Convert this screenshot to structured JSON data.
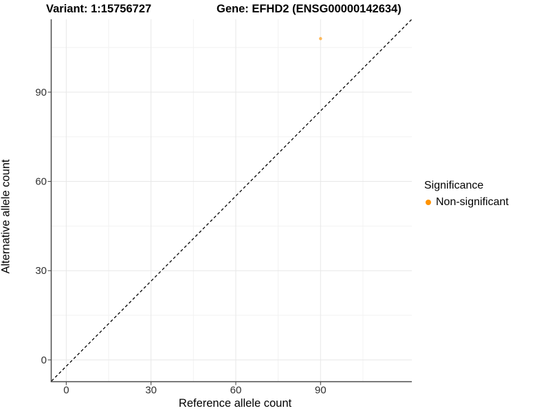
{
  "chart_data": {
    "type": "scatter",
    "titles": {
      "variant": "Variant: 1:15756727",
      "gene": "Gene: EFHD2 (ENSG00000142634)"
    },
    "xlabel": "Reference allele count",
    "ylabel": "Alternative allele count",
    "xticks": [
      0,
      30,
      60,
      90
    ],
    "yticks": [
      0,
      30,
      60,
      90
    ],
    "xminor": [
      15,
      45,
      75,
      105
    ],
    "yminor": [
      15,
      45,
      75,
      105
    ],
    "xlim": [
      -5.2,
      122.3
    ],
    "ylim": [
      -7.2,
      114.5
    ],
    "grid": true,
    "points": [
      {
        "x": 90,
        "y": 108,
        "series": "Non-significant"
      }
    ],
    "abline": {
      "slope": 1,
      "intercept": 0,
      "linetype": "dashed",
      "color": "#000000"
    },
    "legend": {
      "title": "Significance",
      "position": "right",
      "items": [
        {
          "label": "Non-significant",
          "color": "#FF9300"
        }
      ]
    },
    "colors": {
      "point": "#FF9300",
      "point_opacity": 0.62,
      "axis_line": "#4a4a4a",
      "tick_mark": "#4a4a4a",
      "tick_label": "#303030",
      "grid_major": "#e7e7e7",
      "grid_minor": "#f2f2f2",
      "background": "#ffffff"
    }
  }
}
